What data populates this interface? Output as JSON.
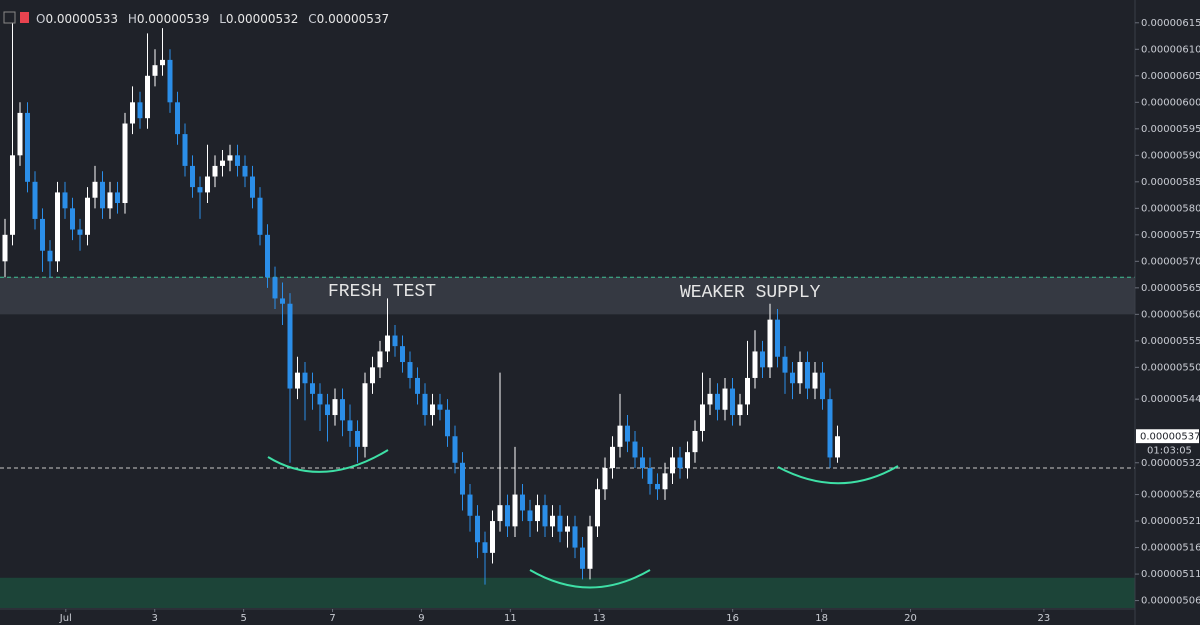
{
  "chart_data": {
    "type": "candlestick",
    "legend": [
      {
        "key": "O",
        "text": "0.00000533"
      },
      {
        "key": "H",
        "text": "0.00000539"
      },
      {
        "key": "L",
        "text": "0.00000532"
      },
      {
        "key": "C",
        "text": "0.00000537"
      }
    ],
    "annotations": [
      "FRESH TEST",
      "WEAKER SUPPLY"
    ],
    "up_color": "#ffffff",
    "down_color": "#2b8ee8",
    "open": [
      5.7e-06,
      5.75e-06,
      5.9e-06,
      5.98e-06,
      5.85e-06,
      5.78e-06,
      5.72e-06,
      5.7e-06,
      5.83e-06,
      5.8e-06,
      5.76e-06,
      5.75e-06,
      5.82e-06,
      5.85e-06,
      5.8e-06,
      5.83e-06,
      5.81e-06,
      5.96e-06,
      6e-06,
      5.97e-06,
      6.05e-06,
      6.07e-06,
      6.08e-06,
      6e-06,
      5.94e-06,
      5.88e-06,
      5.84e-06,
      5.83e-06,
      5.86e-06,
      5.88e-06,
      5.89e-06,
      5.9e-06,
      5.88e-06,
      5.86e-06,
      5.82e-06,
      5.75e-06,
      5.67e-06,
      5.63e-06,
      5.62e-06,
      5.46e-06,
      5.49e-06,
      5.47e-06,
      5.45e-06,
      5.43e-06,
      5.41e-06,
      5.44e-06,
      5.4e-06,
      5.38e-06,
      5.35e-06,
      5.47e-06,
      5.5e-06,
      5.53e-06,
      5.56e-06,
      5.54e-06,
      5.51e-06,
      5.48e-06,
      5.45e-06,
      5.41e-06,
      5.43e-06,
      5.42e-06,
      5.37e-06,
      5.32e-06,
      5.26e-06,
      5.22e-06,
      5.17e-06,
      5.15e-06,
      5.21e-06,
      5.24e-06,
      5.2e-06,
      5.26e-06,
      5.23e-06,
      5.21e-06,
      5.24e-06,
      5.2e-06,
      5.22e-06,
      5.19e-06,
      5.2e-06,
      5.16e-06,
      5.12e-06,
      5.2e-06,
      5.27e-06,
      5.31e-06,
      5.35e-06,
      5.39e-06,
      5.36e-06,
      5.33e-06,
      5.31e-06,
      5.28e-06,
      5.27e-06,
      5.3e-06,
      5.33e-06,
      5.31e-06,
      5.34e-06,
      5.38e-06,
      5.43e-06,
      5.45e-06,
      5.42e-06,
      5.46e-06,
      5.41e-06,
      5.43e-06,
      5.48e-06,
      5.53e-06,
      5.5e-06,
      5.59e-06,
      5.52e-06,
      5.49e-06,
      5.47e-06,
      5.51e-06,
      5.46e-06,
      5.49e-06,
      5.44e-06,
      5.33e-06
    ],
    "high": [
      5.78e-06,
      6.15e-06,
      6e-06,
      6e-06,
      5.87e-06,
      5.8e-06,
      5.74e-06,
      5.85e-06,
      5.85e-06,
      5.82e-06,
      5.78e-06,
      5.84e-06,
      5.88e-06,
      5.87e-06,
      5.85e-06,
      5.85e-06,
      5.98e-06,
      6.03e-06,
      6.02e-06,
      6.13e-06,
      6.1e-06,
      6.14e-06,
      6.1e-06,
      6.02e-06,
      5.96e-06,
      5.9e-06,
      5.86e-06,
      5.92e-06,
      5.9e-06,
      5.91e-06,
      5.92e-06,
      5.92e-06,
      5.9e-06,
      5.88e-06,
      5.84e-06,
      5.77e-06,
      5.69e-06,
      5.66e-06,
      5.64e-06,
      5.52e-06,
      5.51e-06,
      5.49e-06,
      5.47e-06,
      5.45e-06,
      5.46e-06,
      5.46e-06,
      5.43e-06,
      5.4e-06,
      5.49e-06,
      5.52e-06,
      5.55e-06,
      5.63e-06,
      5.58e-06,
      5.56e-06,
      5.53e-06,
      5.5e-06,
      5.47e-06,
      5.45e-06,
      5.45e-06,
      5.44e-06,
      5.39e-06,
      5.34e-06,
      5.28e-06,
      5.24e-06,
      5.19e-06,
      5.23e-06,
      5.49e-06,
      5.26e-06,
      5.35e-06,
      5.28e-06,
      5.25e-06,
      5.26e-06,
      5.26e-06,
      5.24e-06,
      5.24e-06,
      5.22e-06,
      5.22e-06,
      5.18e-06,
      5.22e-06,
      5.29e-06,
      5.33e-06,
      5.37e-06,
      5.45e-06,
      5.41e-06,
      5.38e-06,
      5.35e-06,
      5.33e-06,
      5.3e-06,
      5.32e-06,
      5.35e-06,
      5.35e-06,
      5.36e-06,
      5.4e-06,
      5.49e-06,
      5.48e-06,
      5.47e-06,
      5.48e-06,
      5.48e-06,
      5.45e-06,
      5.55e-06,
      5.57e-06,
      5.55e-06,
      5.62e-06,
      5.61e-06,
      5.54e-06,
      5.51e-06,
      5.53e-06,
      5.53e-06,
      5.51e-06,
      5.51e-06,
      5.46e-06,
      5.39e-06
    ],
    "low": [
      5.67e-06,
      5.73e-06,
      5.88e-06,
      5.83e-06,
      5.76e-06,
      5.68e-06,
      5.67e-06,
      5.68e-06,
      5.78e-06,
      5.74e-06,
      5.72e-06,
      5.73e-06,
      5.8e-06,
      5.78e-06,
      5.78e-06,
      5.79e-06,
      5.79e-06,
      5.94e-06,
      5.95e-06,
      5.95e-06,
      6.03e-06,
      6.05e-06,
      5.98e-06,
      5.92e-06,
      5.86e-06,
      5.82e-06,
      5.78e-06,
      5.81e-06,
      5.84e-06,
      5.86e-06,
      5.87e-06,
      5.86e-06,
      5.84e-06,
      5.8e-06,
      5.73e-06,
      5.65e-06,
      5.61e-06,
      5.58e-06,
      5.32e-06,
      5.44e-06,
      5.4e-06,
      5.42e-06,
      5.38e-06,
      5.36e-06,
      5.39e-06,
      5.37e-06,
      5.35e-06,
      5.32e-06,
      5.33e-06,
      5.45e-06,
      5.48e-06,
      5.51e-06,
      5.52e-06,
      5.49e-06,
      5.46e-06,
      5.43e-06,
      5.39e-06,
      5.39e-06,
      5.4e-06,
      5.35e-06,
      5.3e-06,
      5.23e-06,
      5.19e-06,
      5.14e-06,
      5.09e-06,
      5.13e-06,
      5.19e-06,
      5.18e-06,
      5.18e-06,
      5.21e-06,
      5.18e-06,
      5.19e-06,
      5.18e-06,
      5.18e-06,
      5.17e-06,
      5.16e-06,
      5.14e-06,
      5.1e-06,
      5.1e-06,
      5.18e-06,
      5.25e-06,
      5.29e-06,
      5.33e-06,
      5.34e-06,
      5.31e-06,
      5.29e-06,
      5.26e-06,
      5.25e-06,
      5.25e-06,
      5.28e-06,
      5.29e-06,
      5.29e-06,
      5.32e-06,
      5.36e-06,
      5.41e-06,
      5.4e-06,
      5.4e-06,
      5.39e-06,
      5.39e-06,
      5.41e-06,
      5.46e-06,
      5.48e-06,
      5.48e-06,
      5.5e-06,
      5.45e-06,
      5.44e-06,
      5.45e-06,
      5.44e-06,
      5.44e-06,
      5.42e-06,
      5.31e-06,
      5.32e-06
    ],
    "close": [
      5.75e-06,
      5.9e-06,
      5.98e-06,
      5.85e-06,
      5.78e-06,
      5.72e-06,
      5.7e-06,
      5.83e-06,
      5.8e-06,
      5.76e-06,
      5.75e-06,
      5.82e-06,
      5.85e-06,
      5.8e-06,
      5.83e-06,
      5.81e-06,
      5.96e-06,
      6e-06,
      5.97e-06,
      6.05e-06,
      6.07e-06,
      6.08e-06,
      6e-06,
      5.94e-06,
      5.88e-06,
      5.84e-06,
      5.83e-06,
      5.86e-06,
      5.88e-06,
      5.89e-06,
      5.9e-06,
      5.88e-06,
      5.86e-06,
      5.82e-06,
      5.75e-06,
      5.67e-06,
      5.63e-06,
      5.62e-06,
      5.46e-06,
      5.49e-06,
      5.47e-06,
      5.45e-06,
      5.43e-06,
      5.41e-06,
      5.44e-06,
      5.4e-06,
      5.38e-06,
      5.35e-06,
      5.47e-06,
      5.5e-06,
      5.53e-06,
      5.56e-06,
      5.54e-06,
      5.51e-06,
      5.48e-06,
      5.45e-06,
      5.41e-06,
      5.43e-06,
      5.42e-06,
      5.37e-06,
      5.32e-06,
      5.26e-06,
      5.22e-06,
      5.17e-06,
      5.15e-06,
      5.21e-06,
      5.24e-06,
      5.2e-06,
      5.26e-06,
      5.23e-06,
      5.21e-06,
      5.24e-06,
      5.2e-06,
      5.22e-06,
      5.19e-06,
      5.2e-06,
      5.16e-06,
      5.12e-06,
      5.2e-06,
      5.27e-06,
      5.31e-06,
      5.35e-06,
      5.39e-06,
      5.36e-06,
      5.33e-06,
      5.31e-06,
      5.28e-06,
      5.27e-06,
      5.3e-06,
      5.33e-06,
      5.31e-06,
      5.34e-06,
      5.38e-06,
      5.43e-06,
      5.45e-06,
      5.42e-06,
      5.46e-06,
      5.41e-06,
      5.43e-06,
      5.48e-06,
      5.53e-06,
      5.5e-06,
      5.59e-06,
      5.52e-06,
      5.49e-06,
      5.47e-06,
      5.51e-06,
      5.46e-06,
      5.49e-06,
      5.44e-06,
      5.33e-06,
      5.37e-06
    ],
    "ylim": [
      5.046e-06,
      6.193e-06
    ],
    "yticks": [
      {
        "value": 6.15e-06,
        "label": "0.00000615"
      },
      {
        "value": 6.1e-06,
        "label": "0.00000610"
      },
      {
        "value": 6.05e-06,
        "label": "0.00000605"
      },
      {
        "value": 6e-06,
        "label": "0.00000600"
      },
      {
        "value": 5.95e-06,
        "label": "0.00000595"
      },
      {
        "value": 5.9e-06,
        "label": "0.00000590"
      },
      {
        "value": 5.85e-06,
        "label": "0.00000585"
      },
      {
        "value": 5.8e-06,
        "label": "0.00000580"
      },
      {
        "value": 5.75e-06,
        "label": "0.00000575"
      },
      {
        "value": 5.7e-06,
        "label": "0.00000570"
      },
      {
        "value": 5.65e-06,
        "label": "0.00000565"
      },
      {
        "value": 5.6e-06,
        "label": "0.00000560"
      },
      {
        "value": 5.55e-06,
        "label": "0.00000555"
      },
      {
        "value": 5.5e-06,
        "label": "0.00000550"
      },
      {
        "value": 5.44e-06,
        "label": "0.00000544"
      },
      {
        "value": 5.32e-06,
        "label": "0.00000532"
      },
      {
        "value": 5.26e-06,
        "label": "0.00000526"
      },
      {
        "value": 5.21e-06,
        "label": "0.00000521"
      },
      {
        "value": 5.16e-06,
        "label": "0.00000516"
      },
      {
        "value": 5.11e-06,
        "label": "0.00000511"
      },
      {
        "value": 5.06e-06,
        "label": "0.00000506"
      }
    ],
    "xlim": [
      -0.48,
      25.05
    ],
    "xticks": [
      {
        "value": 1,
        "label": "Jul"
      },
      3,
      5,
      7,
      9,
      11,
      13,
      16,
      18,
      20,
      23
    ],
    "zones": [
      {
        "low": 5.6e-06,
        "high": 5.67e-06,
        "color": "#3a3d46"
      },
      {
        "low": 5.046e-06,
        "high": 5.103e-06,
        "color": "#1c4a3b"
      }
    ],
    "levels": [
      {
        "value": 5.67e-06,
        "color": "#3fbf93"
      },
      {
        "value": 5.31e-06,
        "color": "#c8c8c8"
      }
    ],
    "last_price": {
      "value": 5.37e-06,
      "label": "0.00000537"
    },
    "countdown": "01:03:05"
  }
}
